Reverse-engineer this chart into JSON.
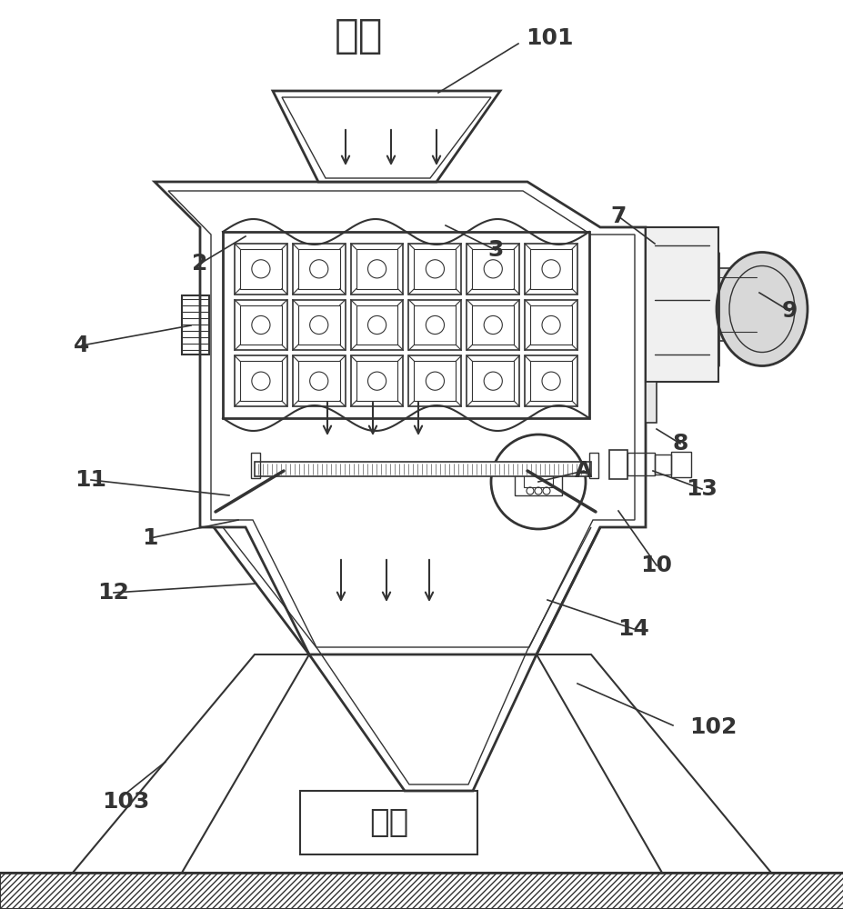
{
  "bg_color": "#ffffff",
  "line_color": "#333333",
  "label_jinliao": "进料",
  "label_chuliao": "出料",
  "labels_data": [
    [
      "2",
      220,
      290,
      270,
      260
    ],
    [
      "3",
      545,
      275,
      490,
      248
    ],
    [
      "4",
      90,
      380,
      210,
      358
    ],
    [
      "7",
      680,
      238,
      720,
      268
    ],
    [
      "8",
      748,
      488,
      722,
      472
    ],
    [
      "9",
      868,
      342,
      835,
      322
    ],
    [
      "11",
      100,
      528,
      252,
      545
    ],
    [
      "1",
      165,
      592,
      262,
      572
    ],
    [
      "12",
      125,
      652,
      282,
      642
    ],
    [
      "A",
      642,
      518,
      592,
      530
    ],
    [
      "13",
      772,
      538,
      718,
      518
    ],
    [
      "10",
      722,
      622,
      680,
      562
    ],
    [
      "14",
      697,
      692,
      602,
      660
    ]
  ]
}
